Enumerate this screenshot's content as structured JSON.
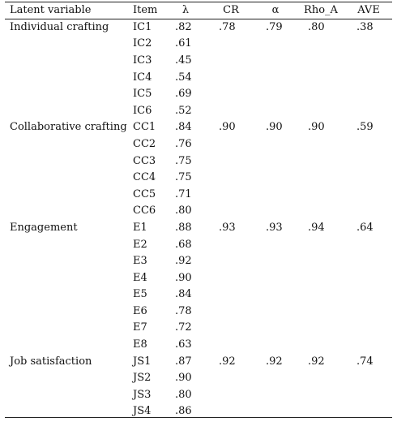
{
  "columns": {
    "latent": "Latent variable",
    "item": "Item",
    "lambda": "λ",
    "cr": "CR",
    "alpha": "α",
    "rho": "Rho_A",
    "ave": "AVE"
  },
  "rows": [
    {
      "latent": "Individual crafting",
      "item": "IC1",
      "lambda": ".82",
      "cr": ".78",
      "alpha": ".79",
      "rho": ".80",
      "ave": ".38"
    },
    {
      "latent": "",
      "item": "IC2",
      "lambda": ".61",
      "cr": "",
      "alpha": "",
      "rho": "",
      "ave": ""
    },
    {
      "latent": "",
      "item": "IC3",
      "lambda": ".45",
      "cr": "",
      "alpha": "",
      "rho": "",
      "ave": ""
    },
    {
      "latent": "",
      "item": "IC4",
      "lambda": ".54",
      "cr": "",
      "alpha": "",
      "rho": "",
      "ave": ""
    },
    {
      "latent": "",
      "item": "IC5",
      "lambda": ".69",
      "cr": "",
      "alpha": "",
      "rho": "",
      "ave": ""
    },
    {
      "latent": "",
      "item": "IC6",
      "lambda": ".52",
      "cr": "",
      "alpha": "",
      "rho": "",
      "ave": ""
    },
    {
      "latent": "Collaborative crafting",
      "item": "CC1",
      "lambda": ".84",
      "cr": ".90",
      "alpha": ".90",
      "rho": ".90",
      "ave": ".59"
    },
    {
      "latent": "",
      "item": "CC2",
      "lambda": ".76",
      "cr": "",
      "alpha": "",
      "rho": "",
      "ave": ""
    },
    {
      "latent": "",
      "item": "CC3",
      "lambda": ".75",
      "cr": "",
      "alpha": "",
      "rho": "",
      "ave": ""
    },
    {
      "latent": "",
      "item": "CC4",
      "lambda": ".75",
      "cr": "",
      "alpha": "",
      "rho": "",
      "ave": ""
    },
    {
      "latent": "",
      "item": "CC5",
      "lambda": ".71",
      "cr": "",
      "alpha": "",
      "rho": "",
      "ave": ""
    },
    {
      "latent": "",
      "item": "CC6",
      "lambda": ".80",
      "cr": "",
      "alpha": "",
      "rho": "",
      "ave": ""
    },
    {
      "latent": "Engagement",
      "item": "E1",
      "lambda": ".88",
      "cr": ".93",
      "alpha": ".93",
      "rho": ".94",
      "ave": ".64"
    },
    {
      "latent": "",
      "item": "E2",
      "lambda": ".68",
      "cr": "",
      "alpha": "",
      "rho": "",
      "ave": ""
    },
    {
      "latent": "",
      "item": "E3",
      "lambda": ".92",
      "cr": "",
      "alpha": "",
      "rho": "",
      "ave": ""
    },
    {
      "latent": "",
      "item": "E4",
      "lambda": ".90",
      "cr": "",
      "alpha": "",
      "rho": "",
      "ave": ""
    },
    {
      "latent": "",
      "item": "E5",
      "lambda": ".84",
      "cr": "",
      "alpha": "",
      "rho": "",
      "ave": ""
    },
    {
      "latent": "",
      "item": "E6",
      "lambda": ".78",
      "cr": "",
      "alpha": "",
      "rho": "",
      "ave": ""
    },
    {
      "latent": "",
      "item": "E7",
      "lambda": ".72",
      "cr": "",
      "alpha": "",
      "rho": "",
      "ave": ""
    },
    {
      "latent": "",
      "item": "E8",
      "lambda": ".63",
      "cr": "",
      "alpha": "",
      "rho": "",
      "ave": ""
    },
    {
      "latent": "Job satisfaction",
      "item": "JS1",
      "lambda": ".87",
      "cr": ".92",
      "alpha": ".92",
      "rho": ".92",
      "ave": ".74"
    },
    {
      "latent": "",
      "item": "JS2",
      "lambda": ".90",
      "cr": "",
      "alpha": "",
      "rho": "",
      "ave": ""
    },
    {
      "latent": "",
      "item": "JS3",
      "lambda": ".80",
      "cr": "",
      "alpha": "",
      "rho": "",
      "ave": ""
    },
    {
      "latent": "",
      "item": "JS4",
      "lambda": ".86",
      "cr": "",
      "alpha": "",
      "rho": "",
      "ave": ""
    }
  ]
}
